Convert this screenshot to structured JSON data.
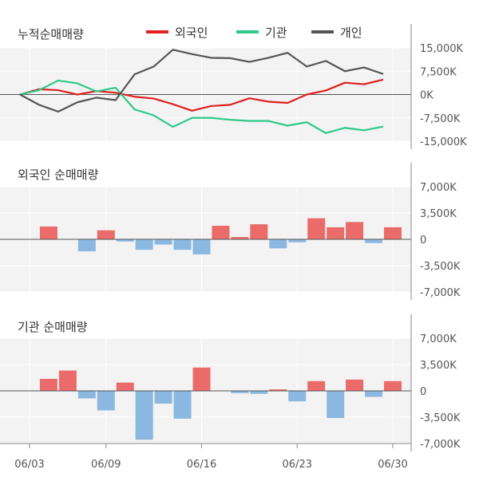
{
  "chart_data": [
    {
      "type": "line",
      "title": "누적순매매량",
      "ylim": [
        -15000,
        15000
      ],
      "yticks": [
        "15,000K",
        "7,500K",
        "0K",
        "-7,500K",
        "-15,000K"
      ],
      "yticks_values": [
        15000,
        7500,
        0,
        -7500,
        -15000
      ],
      "legend": [
        "외국인",
        "기관",
        "개인"
      ],
      "legend_placement": "top",
      "x": [
        0,
        1,
        2,
        3,
        4,
        5,
        6,
        7,
        8,
        9,
        10,
        11,
        12,
        13,
        14,
        15,
        16,
        17,
        18,
        19
      ],
      "series": [
        {
          "name": "외국인",
          "color": "#e02020",
          "values": [
            0,
            1700,
            1400,
            0,
            1100,
            600,
            -700,
            -1300,
            -3100,
            -5200,
            -3700,
            -3300,
            -1200,
            -2300,
            -2700,
            0,
            1300,
            3800,
            3300,
            4800
          ]
        },
        {
          "name": "기관",
          "color": "#2ec98a",
          "values": [
            0,
            1400,
            4500,
            3600,
            1000,
            2200,
            -4800,
            -6700,
            -10400,
            -7500,
            -7500,
            -8100,
            -8500,
            -8500,
            -10000,
            -8900,
            -12400,
            -10700,
            -11500,
            -10300
          ]
        },
        {
          "name": "개인",
          "color": "#555555",
          "values": [
            0,
            -3300,
            -5500,
            -2500,
            -1000,
            -1800,
            6500,
            9000,
            14400,
            13000,
            11800,
            11700,
            10500,
            11800,
            13400,
            9000,
            10800,
            7500,
            8700,
            6600
          ]
        }
      ]
    },
    {
      "type": "bar",
      "title": "외국인 순매매량",
      "ylim": [
        -7000,
        7000
      ],
      "yticks": [
        "7,000K",
        "3,500K",
        "0",
        "-3,500K",
        "-7,000K"
      ],
      "yticks_values": [
        7000,
        3500,
        0,
        -3500,
        -7000
      ],
      "x": [
        0,
        1,
        2,
        3,
        4,
        5,
        6,
        7,
        8,
        9,
        10,
        11,
        12,
        13,
        14,
        15,
        16,
        17,
        18,
        19
      ],
      "values": [
        0,
        1700,
        0,
        -1600,
        1200,
        -300,
        -1400,
        -700,
        -1400,
        -2000,
        1800,
        300,
        2000,
        -1200,
        -400,
        2800,
        1600,
        2300,
        -500,
        1600
      ],
      "positive_color": "#eb6b6b",
      "negative_color": "#8bb8e0"
    },
    {
      "type": "bar",
      "title": "기관 순매매량",
      "ylim": [
        -7000,
        7000
      ],
      "yticks": [
        "7,000K",
        "3,500K",
        "0",
        "-3,500K",
        "-7,000K"
      ],
      "yticks_values": [
        7000,
        3500,
        0,
        -3500,
        -7000
      ],
      "x": [
        0,
        1,
        2,
        3,
        4,
        5,
        6,
        7,
        8,
        9,
        10,
        11,
        12,
        13,
        14,
        15,
        16,
        17,
        18,
        19
      ],
      "values": [
        0,
        1600,
        2700,
        -1000,
        -2600,
        1100,
        -6500,
        -1700,
        -3700,
        3100,
        0,
        -300,
        -400,
        200,
        -1400,
        1300,
        -3600,
        1500,
        -800,
        1300
      ],
      "positive_color": "#eb6b6b",
      "negative_color": "#8bb8e0"
    }
  ],
  "x_axis": {
    "labels": [
      "06/03",
      "06/09",
      "06/16",
      "06/23",
      "06/30"
    ],
    "label_positions": [
      0,
      4,
      9,
      14,
      19
    ]
  }
}
